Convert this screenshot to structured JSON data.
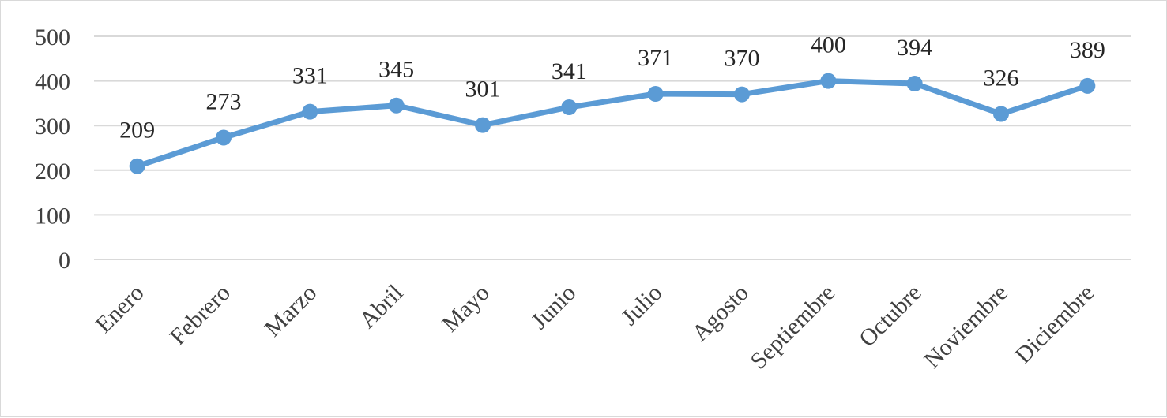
{
  "chart_data": {
    "type": "line",
    "title": "",
    "xlabel": "",
    "ylabel": "",
    "categories": [
      "Enero",
      "Febrero",
      "Marzo",
      "Abril",
      "Mayo",
      "Junio",
      "Julio",
      "Agosto",
      "Septiembre",
      "Octubre",
      "Noviembre",
      "Diciembre"
    ],
    "series": [
      {
        "values": [
          209,
          273,
          331,
          345,
          301,
          341,
          371,
          370,
          400,
          394,
          326,
          389
        ],
        "color": "#5b9bd5"
      }
    ],
    "ylim": [
      0,
      500
    ],
    "yticks": [
      "0",
      "100",
      "200",
      "300",
      "400",
      "500"
    ],
    "ytick_values": [
      0,
      100,
      200,
      300,
      400,
      500
    ],
    "data_labels": [
      "209",
      "273",
      "331",
      "345",
      "301",
      "341",
      "371",
      "370",
      "400",
      "394",
      "326",
      "389"
    ],
    "grid": true,
    "legend": "none"
  }
}
